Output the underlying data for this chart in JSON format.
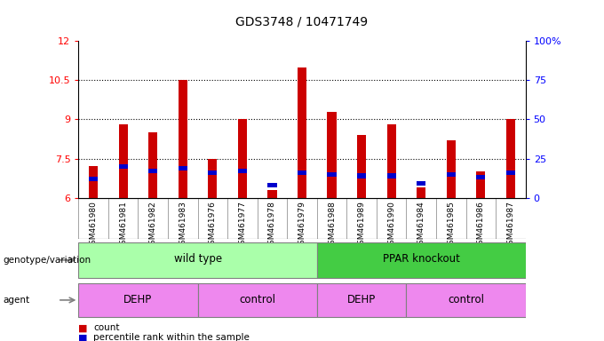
{
  "title": "GDS3748 / 10471749",
  "samples": [
    "GSM461980",
    "GSM461981",
    "GSM461982",
    "GSM461983",
    "GSM461976",
    "GSM461977",
    "GSM461978",
    "GSM461979",
    "GSM461988",
    "GSM461989",
    "GSM461990",
    "GSM461984",
    "GSM461985",
    "GSM461986",
    "GSM461987"
  ],
  "red_values": [
    7.2,
    8.8,
    8.5,
    10.5,
    7.5,
    9.0,
    6.3,
    11.0,
    9.3,
    8.4,
    8.8,
    6.4,
    8.2,
    7.0,
    9.0
  ],
  "blue_pct": [
    12,
    20,
    17,
    19,
    16,
    17,
    8,
    16,
    15,
    14,
    14,
    9,
    15,
    13,
    16
  ],
  "ymin": 6.0,
  "ymax": 12.0,
  "yticks": [
    6,
    7.5,
    9,
    10.5,
    12
  ],
  "ytick_labels": [
    "6",
    "7.5",
    "9",
    "10.5",
    "12"
  ],
  "right_yticks": [
    0,
    25,
    50,
    75,
    100
  ],
  "right_ytick_labels": [
    "0",
    "25",
    "50",
    "75",
    "100%"
  ],
  "dotted_lines": [
    7.5,
    9.0,
    10.5
  ],
  "genotype_wild": [
    0,
    7
  ],
  "genotype_ko": [
    8,
    14
  ],
  "agent_dehp1": [
    0,
    3
  ],
  "agent_ctrl1": [
    4,
    7
  ],
  "agent_dehp2": [
    8,
    10
  ],
  "agent_ctrl2": [
    11,
    14
  ],
  "bar_red": "#cc0000",
  "bar_blue": "#0000cc",
  "wild_color": "#aaffaa",
  "ko_color": "#44cc44",
  "dehp_color": "#ee88ee",
  "ctrl_color": "#cc55cc",
  "tick_bg": "#cccccc",
  "white": "#ffffff"
}
